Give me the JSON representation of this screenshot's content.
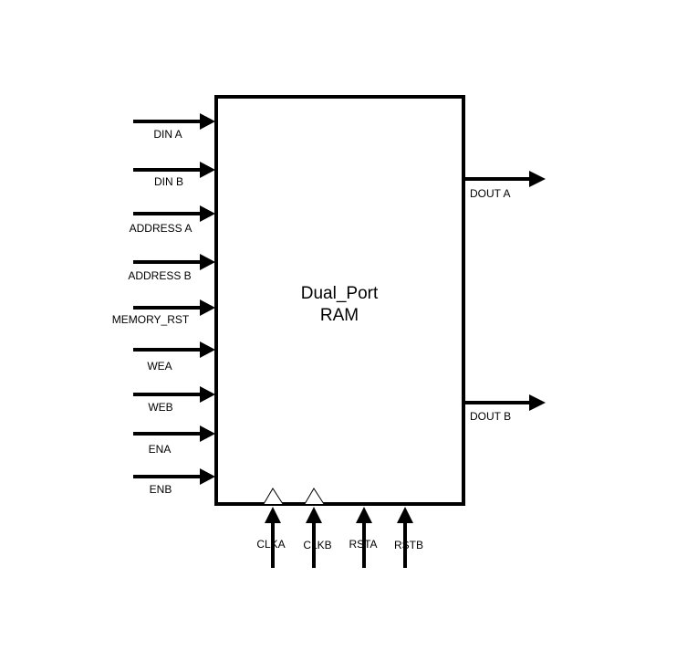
{
  "block": {
    "title_line1": "Dual_Port",
    "title_line2": "RAM"
  },
  "inputs": {
    "din_a": "DIN A",
    "din_b": "DIN B",
    "address_a": "ADDRESS A",
    "address_b": "ADDRESS B",
    "memory_rst": "MEMORY_RST",
    "wea": "WEA",
    "web": "WEB",
    "ena": "ENA",
    "enb": "ENB"
  },
  "outputs": {
    "dout_a": "DOUT A",
    "dout_b": "DOUT B"
  },
  "bottom_inputs": {
    "clka": "CLKA",
    "clkb": "CLKB",
    "rsta": "RSTA",
    "rstb": "RSTB"
  },
  "colors": {
    "stroke": "#000000",
    "background": "#ffffff"
  }
}
